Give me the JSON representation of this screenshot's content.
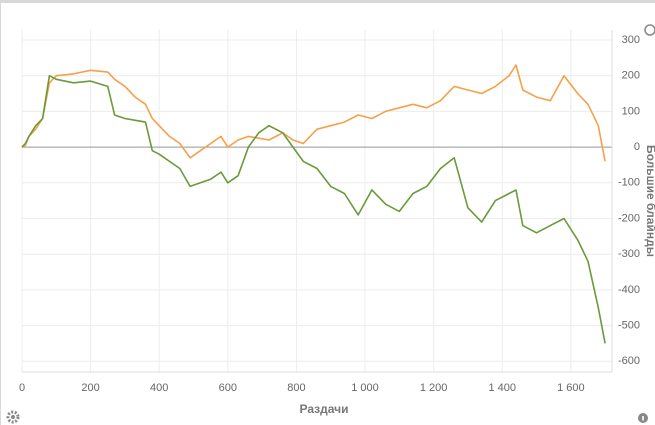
{
  "chart_data": {
    "type": "line",
    "x_label": "Раздачи",
    "y_label": "Большие блайнды",
    "x": [
      0,
      10,
      20,
      40,
      60,
      80,
      100,
      150,
      200,
      250,
      270,
      300,
      330,
      360,
      380,
      400,
      430,
      460,
      490,
      520,
      550,
      580,
      600,
      630,
      660,
      690,
      720,
      760,
      790,
      820,
      860,
      900,
      940,
      980,
      1020,
      1060,
      1100,
      1140,
      1180,
      1220,
      1260,
      1300,
      1340,
      1380,
      1420,
      1440,
      1460,
      1500,
      1540,
      1580,
      1620,
      1650,
      1680,
      1700
    ],
    "series": [
      {
        "color": "#f5a04a",
        "values": [
          0,
          5,
          30,
          50,
          80,
          180,
          200,
          205,
          215,
          210,
          190,
          170,
          140,
          120,
          80,
          60,
          30,
          10,
          -30,
          -10,
          10,
          30,
          0,
          20,
          30,
          25,
          20,
          40,
          20,
          10,
          50,
          60,
          70,
          90,
          80,
          100,
          110,
          120,
          110,
          130,
          170,
          160,
          150,
          170,
          200,
          230,
          160,
          140,
          130,
          200,
          150,
          120,
          60,
          -40
        ]
      },
      {
        "color": "#6a9a3a",
        "values": [
          0,
          10,
          30,
          60,
          80,
          200,
          190,
          180,
          185,
          170,
          90,
          80,
          75,
          70,
          -10,
          -20,
          -40,
          -60,
          -110,
          -100,
          -90,
          -70,
          -100,
          -80,
          0,
          40,
          60,
          40,
          0,
          -40,
          -60,
          -110,
          -130,
          -190,
          -120,
          -160,
          -180,
          -130,
          -110,
          -60,
          -30,
          -170,
          -210,
          -150,
          -130,
          -120,
          -220,
          -240,
          -220,
          -200,
          -260,
          -320,
          -450,
          -550
        ]
      }
    ],
    "xlim": [
      0,
      1720
    ],
    "ylim": [
      -630,
      300
    ],
    "xticks": [
      0,
      200,
      400,
      600,
      800,
      {
        "value": 1000,
        "label": "1 000"
      },
      {
        "value": 1200,
        "label": "1 200"
      },
      {
        "value": 1400,
        "label": "1 400"
      },
      {
        "value": 1600,
        "label": "1 600"
      }
    ],
    "yticks": [
      300,
      200,
      100,
      0,
      -100,
      -200,
      -300,
      -400,
      -500,
      -600
    ],
    "grid": true
  }
}
